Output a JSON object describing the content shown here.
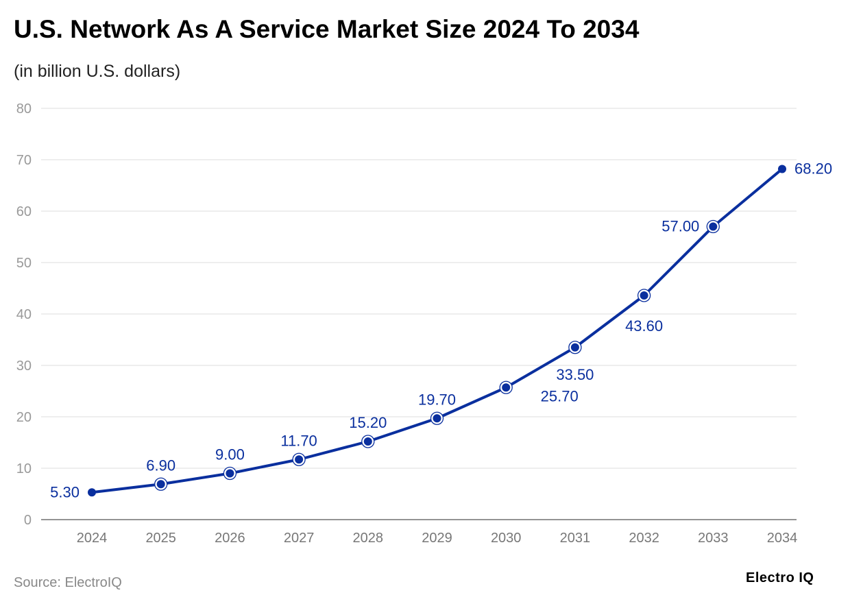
{
  "chart_data": {
    "type": "line",
    "title": "U.S. Network As A Service Market Size 2024 To 2034",
    "subtitle": "(in billion U.S. dollars)",
    "categories": [
      "2024",
      "2025",
      "2026",
      "2027",
      "2028",
      "2029",
      "2030",
      "2031",
      "2032",
      "2033",
      "2034"
    ],
    "values": [
      5.3,
      6.9,
      9.0,
      11.7,
      15.2,
      19.7,
      25.7,
      33.5,
      43.6,
      57.0,
      68.2
    ],
    "data_labels": [
      "5.30",
      "6.90",
      "9.00",
      "11.70",
      "15.20",
      "19.70",
      "25.70",
      "33.50",
      "43.60",
      "57.00",
      "68.20"
    ],
    "ylim": [
      0,
      80
    ],
    "yticks": [
      0,
      10,
      20,
      30,
      40,
      50,
      60,
      70,
      80
    ],
    "grid": true,
    "xlabel": "",
    "ylabel": "",
    "colors": {
      "line": "#0a2f9e",
      "grid": "#e3e3e3",
      "tick": "#999999"
    }
  },
  "source": "Source: ElectroIQ",
  "logo": "Electro IQ"
}
